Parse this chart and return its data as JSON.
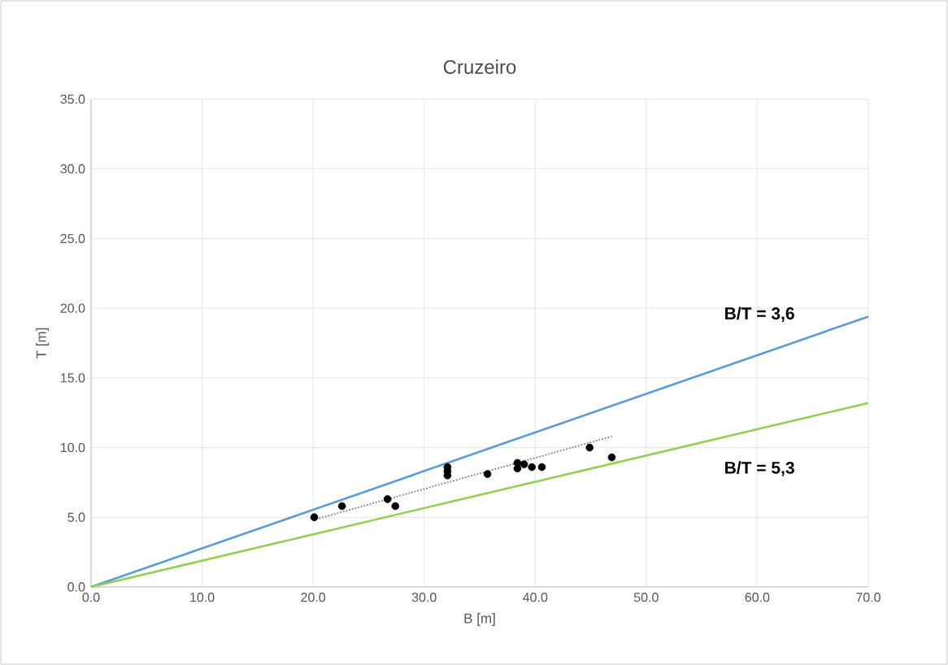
{
  "chart_data": {
    "type": "scatter",
    "title": "Cruzeiro",
    "xlabel": "B [m]",
    "ylabel": "T  [m]",
    "xlim": [
      0,
      70
    ],
    "ylim": [
      0,
      35
    ],
    "xticks": [
      {
        "value": 0,
        "label": "0.0"
      },
      {
        "value": 10,
        "label": "10.0"
      },
      {
        "value": 20,
        "label": "20.0"
      },
      {
        "value": 30,
        "label": "30.0"
      },
      {
        "value": 40,
        "label": "40.0"
      },
      {
        "value": 50,
        "label": "50.0"
      },
      {
        "value": 60,
        "label": "60.0"
      },
      {
        "value": 70,
        "label": "70.0"
      }
    ],
    "yticks": [
      {
        "value": 0,
        "label": "0.0"
      },
      {
        "value": 5,
        "label": "5.0"
      },
      {
        "value": 10,
        "label": "10.0"
      },
      {
        "value": 15,
        "label": "15.0"
      },
      {
        "value": 20,
        "label": "20.0"
      },
      {
        "value": 25,
        "label": "25.0"
      },
      {
        "value": 30,
        "label": "30.0"
      },
      {
        "value": 35,
        "label": "35.0"
      }
    ],
    "grid": true,
    "series": [
      {
        "type": "line",
        "name": "B/T = 3,6",
        "color": "#5b9bd5",
        "x": [
          0,
          70
        ],
        "values": [
          0,
          19.4
        ],
        "marker": "none",
        "line_style": "solid"
      },
      {
        "type": "line",
        "name": "B/T = 5,3",
        "color": "#92d050",
        "x": [
          0,
          70
        ],
        "values": [
          0,
          13.2
        ],
        "marker": "none",
        "line_style": "solid"
      },
      {
        "type": "line",
        "color": "#7f7f7f",
        "x": [
          20,
          46.9
        ],
        "values": [
          4.8,
          10.8
        ],
        "marker": "none",
        "line_style": "dotted"
      },
      {
        "color": "#000000",
        "marker": "circle",
        "x": [
          20.1,
          22.6,
          26.7,
          27.4,
          32.1,
          32.1,
          32.1,
          35.7,
          38.4,
          38.4,
          39.0,
          39.7,
          40.6,
          44.9,
          46.9
        ],
        "values": [
          5.0,
          5.8,
          6.3,
          5.8,
          8.6,
          8.3,
          8.0,
          8.1,
          8.9,
          8.5,
          8.8,
          8.6,
          8.6,
          10.0,
          9.3
        ]
      }
    ]
  }
}
